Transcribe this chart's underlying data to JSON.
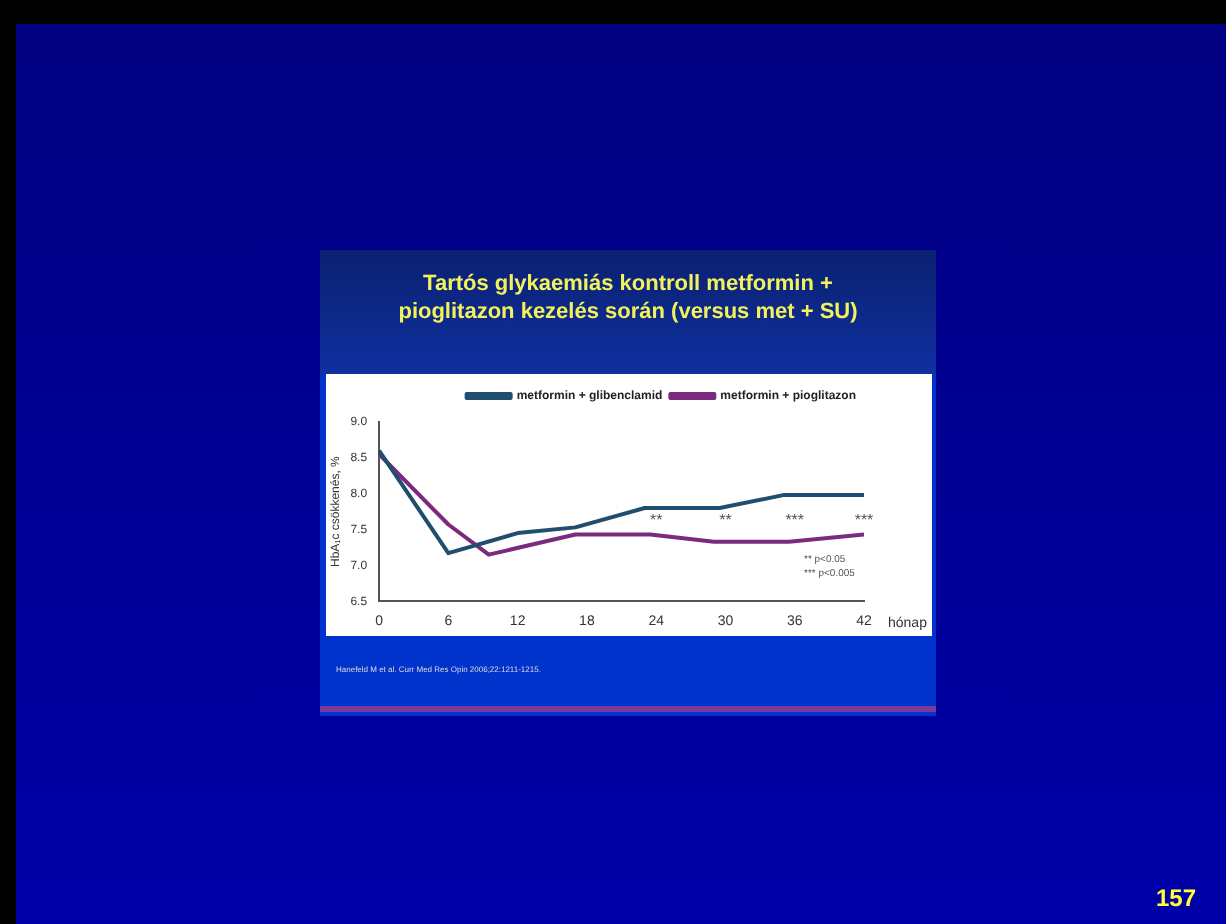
{
  "chart_data": {
    "type": "line",
    "title": "Tartós glykaemiás kontroll metformin + pioglitazon kezelés során (versus met + SU)",
    "xlabel": "hónap",
    "ylabel": "HbA₁c csökkenés, %",
    "series": [
      {
        "name": "metformin + glibenclamid",
        "color": "#1f4e6e",
        "x": [
          0,
          6,
          12,
          17,
          23,
          29.5,
          35,
          42
        ],
        "values": [
          8.6,
          7.17,
          7.45,
          7.53,
          7.8,
          7.8,
          7.98,
          7.98
        ]
      },
      {
        "name": "metformin + pioglitazon",
        "color": "#7b2a7e",
        "x": [
          0,
          6,
          9.5,
          17,
          23.5,
          29,
          35.5,
          42
        ],
        "values": [
          8.55,
          7.57,
          7.15,
          7.43,
          7.43,
          7.33,
          7.33,
          7.43
        ]
      }
    ],
    "xlim": [
      0,
      42
    ],
    "xticks": [
      0,
      6,
      12,
      18,
      24,
      30,
      36,
      42
    ],
    "ylim": [
      6.5,
      9.0
    ],
    "yticks": [
      {
        "value": 6.5,
        "label": "6.5"
      },
      {
        "value": 7.0,
        "label": "7.0"
      },
      {
        "value": 7.5,
        "label": "7.5"
      },
      {
        "value": 8.0,
        "label": "8.0"
      },
      {
        "value": 8.5,
        "label": "8.5"
      },
      {
        "value": 9.0,
        "label": "9.0"
      }
    ],
    "legend": "top right",
    "grid": false,
    "marker": "none",
    "annotations": [
      "** ** *** ***",
      "** p<0.05",
      "*** p<0.005",
      "Hanefeld M et al. Curr Med Res Opin 2006;22:1211-1215.",
      "157"
    ]
  }
}
